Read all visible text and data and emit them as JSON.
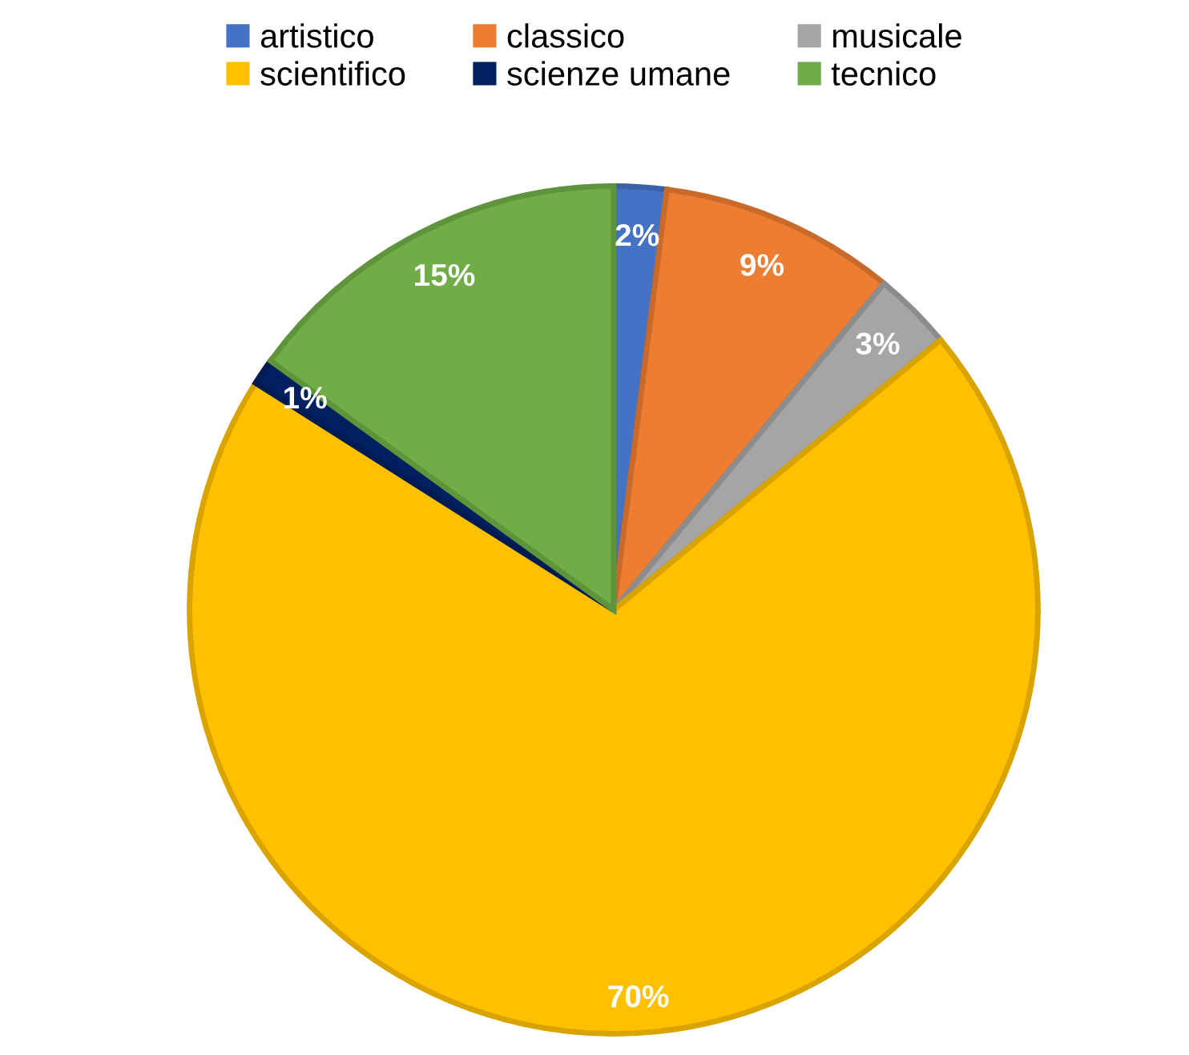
{
  "chart_data": {
    "type": "pie",
    "categories": [
      "artistico",
      "classico",
      "musicale",
      "scientifico",
      "scienze umane",
      "tecnico"
    ],
    "values": [
      2,
      9,
      3,
      70,
      1,
      15
    ],
    "colors": [
      "#4472c4",
      "#ed7d31",
      "#a5a5a5",
      "#ffc000",
      "#002060",
      "#70ad47"
    ],
    "value_labels": [
      "2%",
      "9%",
      "3%",
      "70%",
      "1%",
      "15%"
    ],
    "legend": "top"
  }
}
